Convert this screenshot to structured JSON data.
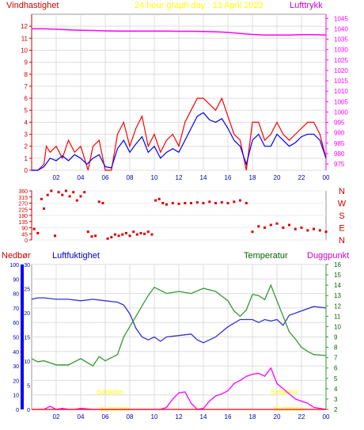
{
  "header": {
    "left_title": "Vindhastighet",
    "center_title": "24 hour graph day : 13 April 2023",
    "right_title": "Lufttrykk"
  },
  "colors": {
    "wind": "#ff0000",
    "wind_avg": "#0000ff",
    "pressure": "#ff00ff",
    "direction": "#dd0000",
    "humidity": "#3333cc",
    "temperature": "#339933",
    "dewpoint": "#ff00ff",
    "sunshine_text": "#ffff00",
    "title_yellow": "#ffff00",
    "left_axis_red": "#cc0000",
    "rain_axis": "#0000ff"
  },
  "lower_header": {
    "rain": "Nedbør",
    "humidity": "Luftfuktighet",
    "temperature": "Temperatur",
    "dewpoint": "Duggpunkt"
  },
  "sunshine": {
    "label_left_1": "Solskinn",
    "label_left_2": "Sunshine",
    "label_right_1": "Solskinn",
    "label_right_2": "Sunshine"
  },
  "chart_data": [
    {
      "type": "line",
      "title": "24 hour graph day : 13 April 2023",
      "x_ticks": [
        "02",
        "04",
        "06",
        "08",
        "10",
        "12",
        "14",
        "16",
        "18",
        "20",
        "22",
        "00"
      ],
      "xlim": [
        0,
        24
      ],
      "y_left_label": "Vindhastighet",
      "y_left_ticks": [
        0,
        1,
        2,
        3,
        4,
        5,
        6,
        7,
        8,
        9,
        10,
        11,
        12
      ],
      "ylim_left": [
        0,
        13
      ],
      "y_right_label": "Lufttrykk",
      "y_right_ticks": [
        975,
        980,
        985,
        990,
        995,
        1000,
        1005,
        1010,
        1015,
        1020,
        1025,
        1030,
        1035,
        1040,
        1045
      ],
      "ylim_right": [
        972,
        1047
      ],
      "series": [
        {
          "axis": "left",
          "x": [
            0,
            0.5,
            1,
            1.2,
            1.5,
            2,
            2.5,
            3,
            3.5,
            4,
            4.3,
            4.6,
            5,
            5.5,
            6,
            6.5,
            7,
            7.5,
            8,
            8.5,
            9,
            9.5,
            10,
            10.5,
            11,
            11.5,
            12,
            12.5,
            13,
            13.5,
            14,
            14.5,
            15,
            15.5,
            16,
            16.5,
            17,
            17.5,
            18,
            18.5,
            19,
            19.5,
            20,
            20.5,
            21,
            21.5,
            22,
            22.5,
            23,
            23.5,
            24
          ],
          "values": [
            0,
            0,
            0.5,
            2,
            1.5,
            2,
            1,
            2.5,
            1.5,
            2,
            1,
            0,
            2,
            2.5,
            0,
            0,
            3,
            4,
            2,
            3.5,
            4.5,
            2,
            3,
            1.5,
            2.5,
            3,
            2,
            4,
            5,
            6,
            6,
            5.5,
            5,
            6,
            4.5,
            3,
            2.5,
            0,
            4,
            4,
            2.5,
            3,
            4,
            3,
            2.5,
            3,
            3.5,
            4,
            4,
            3,
            1
          ]
        },
        {
          "axis": "left",
          "x": [
            0,
            0.5,
            1,
            1.5,
            2,
            2.5,
            3,
            3.5,
            4,
            4.5,
            5,
            5.5,
            6,
            6.5,
            7,
            7.5,
            8,
            8.5,
            9,
            9.5,
            10,
            10.5,
            11,
            11.5,
            12,
            12.5,
            13,
            13.5,
            14,
            14.5,
            15,
            15.5,
            16,
            16.5,
            17,
            17.5,
            18,
            18.5,
            19,
            19.5,
            20,
            20.5,
            21,
            21.5,
            22,
            22.5,
            23,
            23.5,
            24
          ],
          "values": [
            0,
            0,
            0.3,
            1,
            0.8,
            1.2,
            0.8,
            1.3,
            1,
            0.5,
            1,
            1.3,
            0.3,
            0.2,
            1.8,
            2.5,
            1.5,
            2.2,
            2.8,
            1.5,
            2,
            1,
            1.5,
            1.8,
            1.5,
            2.5,
            3.5,
            4.5,
            4.8,
            4.2,
            4,
            4.3,
            3.5,
            2.5,
            2,
            0.5,
            2.5,
            3,
            2,
            2,
            3,
            2.5,
            2,
            2.3,
            2.8,
            3,
            3,
            2.5,
            1
          ]
        },
        {
          "axis": "right",
          "x": [
            0,
            1,
            2,
            3,
            4,
            5,
            6,
            7,
            8,
            9,
            10,
            11,
            12,
            13,
            14,
            15,
            16,
            17,
            18,
            19,
            20,
            21,
            22,
            23,
            24
          ],
          "values": [
            1040,
            1040,
            1039.8,
            1039.5,
            1039.3,
            1039.2,
            1039,
            1038.9,
            1038.9,
            1038.9,
            1038.9,
            1038.9,
            1038.8,
            1038.8,
            1038.7,
            1038.6,
            1038.3,
            1037.8,
            1037.3,
            1037,
            1037,
            1037,
            1037.2,
            1037.2,
            1037
          ]
        }
      ]
    },
    {
      "type": "scatter",
      "x_ticks": [],
      "xlim": [
        0,
        24
      ],
      "y_left_ticks": [
        0,
        45,
        90,
        135,
        180,
        225,
        270,
        315,
        360
      ],
      "ylim": [
        0,
        360
      ],
      "y_right_ticks": [
        "N",
        "W",
        "S",
        "E",
        "N"
      ],
      "series": [
        {
          "x": [
            0.2,
            0.5,
            0.8,
            1.0,
            1.3,
            1.6,
            1.9,
            2.2,
            2.5,
            2.8,
            3.1,
            3.4,
            3.7,
            4.0,
            4.3,
            4.6,
            4.9,
            5.2,
            5.5,
            5.8,
            6.2,
            6.5,
            6.8,
            7.1,
            7.4,
            7.7,
            8.0,
            8.3,
            8.6,
            8.9,
            9.2,
            9.5,
            9.8,
            10.1,
            10.4,
            10.7,
            11.0,
            11.5,
            12.0,
            12.5,
            13.0,
            13.5,
            14.0,
            14.5,
            15.0,
            15.5,
            16.0,
            16.5,
            17.0,
            17.5,
            18.0,
            18.5,
            19.0,
            19.5,
            20.0,
            20.5,
            21.0,
            21.5,
            22.0,
            22.5,
            23.0,
            23.5,
            24.0
          ],
          "values": [
            80,
            50,
            300,
            230,
            330,
            360,
            30,
            350,
            330,
            360,
            320,
            350,
            290,
            320,
            350,
            60,
            25,
            30,
            280,
            270,
            10,
            20,
            40,
            30,
            40,
            50,
            30,
            60,
            40,
            50,
            45,
            60,
            40,
            290,
            300,
            270,
            260,
            270,
            265,
            270,
            270,
            275,
            270,
            280,
            270,
            275,
            270,
            280,
            290,
            270,
            60,
            100,
            90,
            110,
            120,
            90,
            110,
            80,
            90,
            70,
            80,
            70,
            60
          ]
        }
      ]
    },
    {
      "type": "line",
      "x_ticks": [
        "02",
        "04",
        "06",
        "08",
        "10",
        "12",
        "14",
        "16",
        "18",
        "20",
        "22",
        "00"
      ],
      "xlim": [
        0,
        24
      ],
      "y_axis_humidity_ticks": [
        0,
        10,
        20,
        30,
        40,
        50,
        60,
        70,
        80,
        90,
        100
      ],
      "y_axis_rain_ticks": [
        0,
        5,
        10,
        15,
        20,
        25,
        30
      ],
      "y_right_ticks": [
        2,
        3,
        4,
        5,
        6,
        7,
        8,
        9,
        10,
        11,
        12,
        13,
        14,
        15,
        16
      ],
      "ylim_humidity": [
        0,
        100
      ],
      "ylim_temperature": [
        2,
        16
      ],
      "series": [
        {
          "name": "Luftfuktighet",
          "axis": "humidity",
          "x": [
            0,
            0.5,
            1,
            2,
            3,
            4,
            5,
            6,
            7,
            7.5,
            8,
            8.5,
            9,
            9.5,
            10,
            10.5,
            11,
            12,
            13,
            13.5,
            14,
            15,
            16,
            17,
            18,
            18.5,
            19,
            19.5,
            20,
            20.5,
            21,
            22,
            23,
            24
          ],
          "values": [
            76,
            77,
            77,
            76,
            76,
            75,
            76,
            75,
            74,
            72,
            66,
            56,
            50,
            48,
            50,
            47,
            50,
            51,
            52,
            48,
            46,
            50,
            57,
            62,
            62,
            60,
            62,
            61,
            62,
            58,
            65,
            68,
            71,
            70
          ]
        },
        {
          "name": "Temperatur",
          "axis": "temperature",
          "x": [
            0,
            0.5,
            1,
            2,
            3,
            4,
            5,
            5.5,
            6,
            7,
            7.5,
            8,
            8.5,
            9,
            9.5,
            10,
            11,
            12,
            13,
            14,
            15,
            16,
            16.5,
            17,
            17.5,
            18,
            18.5,
            19,
            19.5,
            20,
            20.5,
            21,
            21.5,
            22,
            22.5,
            23,
            24
          ],
          "values": [
            6.9,
            6.6,
            6.7,
            6.3,
            6.3,
            6.9,
            6.2,
            7.1,
            6.7,
            7.3,
            9,
            10,
            11,
            12,
            13,
            13.8,
            13.2,
            13.4,
            13.2,
            13.7,
            13.4,
            12.5,
            11.5,
            11,
            11.6,
            13.1,
            13,
            12.6,
            14,
            12.5,
            11,
            9.5,
            8.8,
            8,
            7.6,
            7.3,
            7.2
          ]
        },
        {
          "name": "Duggpunkt",
          "axis": "temperature",
          "x": [
            0,
            1,
            1.5,
            2,
            2.5,
            3,
            3.5,
            4,
            5,
            6,
            7,
            8,
            9,
            10,
            10.5,
            11,
            11.5,
            12,
            12.5,
            13,
            13.5,
            14,
            14.5,
            15,
            15.5,
            16,
            16.5,
            17,
            17.5,
            18,
            18.5,
            19,
            19.5,
            20,
            20.5,
            21,
            21.5,
            22,
            22.5,
            23,
            24
          ],
          "values": [
            2,
            2,
            2.3,
            2,
            2.1,
            2,
            2,
            2.1,
            2,
            2,
            2,
            2,
            2,
            2,
            2,
            2.2,
            3,
            3.6,
            3.7,
            2.6,
            2,
            2.1,
            2.8,
            3.3,
            3.5,
            3.8,
            4.5,
            4.8,
            5.2,
            5.4,
            5.5,
            5.2,
            6,
            4.5,
            4,
            3.5,
            3,
            2.8,
            2.6,
            2.2,
            2
          ]
        },
        {
          "name": "Nedbør",
          "axis": "rain",
          "x": [
            0,
            24
          ],
          "values": [
            0,
            0
          ]
        }
      ]
    }
  ]
}
